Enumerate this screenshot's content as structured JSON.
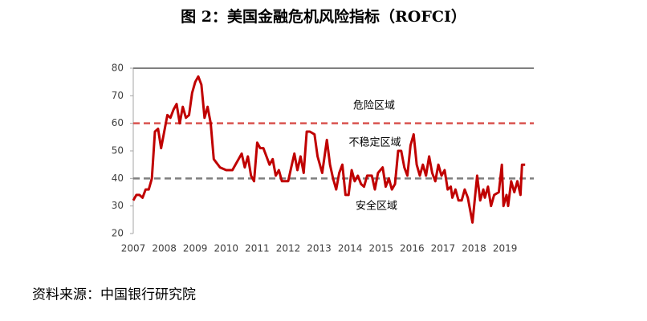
{
  "chart_data": {
    "type": "line",
    "title": "图 2：美国金融危机风险指标（ROFCI）",
    "source": "资料来源：中国银行研究院",
    "annotations": [
      "危险区域",
      "不稳定区域",
      "安全区域"
    ],
    "xlim": [
      2007,
      2019.93
    ],
    "xticks": [
      2007,
      2008,
      2009,
      2010,
      2011,
      2012,
      2013,
      2014,
      2015,
      2016,
      2017,
      2018,
      2019
    ],
    "ylim": [
      20,
      80
    ],
    "yticks": [
      20,
      30,
      40,
      50,
      60,
      70,
      80
    ],
    "reference_lines": [
      {
        "value": 60,
        "color": "#d9534f"
      },
      {
        "value": 40,
        "color": "#7f7f7f"
      }
    ],
    "x": [
      2007.0,
      2007.1,
      2007.2,
      2007.3,
      2007.4,
      2007.5,
      2007.6,
      2007.7,
      2007.8,
      2007.9,
      2008.0,
      2008.1,
      2008.2,
      2008.3,
      2008.4,
      2008.5,
      2008.6,
      2008.7,
      2008.8,
      2008.9,
      2009.0,
      2009.1,
      2009.2,
      2009.3,
      2009.4,
      2009.5,
      2009.6,
      2009.8,
      2010.0,
      2010.2,
      2010.4,
      2010.5,
      2010.6,
      2010.7,
      2010.8,
      2010.9,
      2011.0,
      2011.1,
      2011.2,
      2011.4,
      2011.5,
      2011.6,
      2011.7,
      2011.8,
      2012.0,
      2012.1,
      2012.2,
      2012.3,
      2012.4,
      2012.5,
      2012.6,
      2012.7,
      2012.85,
      2012.95,
      2013.1,
      2013.25,
      2013.35,
      2013.45,
      2013.55,
      2013.65,
      2013.75,
      2013.85,
      2013.95,
      2014.05,
      2014.15,
      2014.25,
      2014.35,
      2014.45,
      2014.55,
      2014.7,
      2014.8,
      2014.9,
      2015.05,
      2015.15,
      2015.25,
      2015.35,
      2015.45,
      2015.55,
      2015.65,
      2015.75,
      2015.85,
      2015.95,
      2016.05,
      2016.15,
      2016.25,
      2016.35,
      2016.45,
      2016.55,
      2016.65,
      2016.75,
      2016.85,
      2016.95,
      2017.05,
      2017.15,
      2017.25,
      2017.3,
      2017.4,
      2017.5,
      2017.6,
      2017.7,
      2017.8,
      2017.95,
      2018.1,
      2018.2,
      2018.3,
      2018.35,
      2018.45,
      2018.55,
      2018.65,
      2018.8,
      2018.9,
      2018.95,
      2019.05,
      2019.1,
      2019.2,
      2019.3,
      2019.4,
      2019.5,
      2019.55,
      2019.65
    ],
    "series": [
      {
        "name": "ROFCI",
        "color": "#c00000",
        "values": [
          32,
          34,
          34,
          33,
          36,
          36,
          40,
          57,
          58,
          51,
          57,
          63,
          62,
          65,
          67,
          60,
          66,
          62,
          63,
          71,
          75,
          77,
          74,
          62,
          66,
          60,
          47,
          44,
          43,
          43,
          47,
          49,
          44,
          48,
          41,
          39,
          53,
          51,
          51,
          45,
          47,
          41,
          43,
          39,
          39,
          44,
          49,
          43,
          48,
          42,
          57,
          57,
          56,
          48,
          42,
          54,
          45,
          40,
          36,
          42,
          45,
          34,
          34,
          43,
          39,
          41,
          38,
          37,
          41,
          41,
          36,
          42,
          44,
          37,
          40,
          36,
          38,
          50,
          50,
          44,
          41,
          52,
          56,
          45,
          41,
          45,
          41,
          48,
          42,
          39,
          45,
          41,
          43,
          36,
          37,
          33,
          36,
          32,
          32,
          36,
          33,
          24,
          41,
          32,
          36,
          33,
          37,
          30,
          34,
          35,
          45,
          30,
          34,
          30,
          39,
          35,
          39,
          34,
          45,
          45
        ]
      }
    ]
  }
}
